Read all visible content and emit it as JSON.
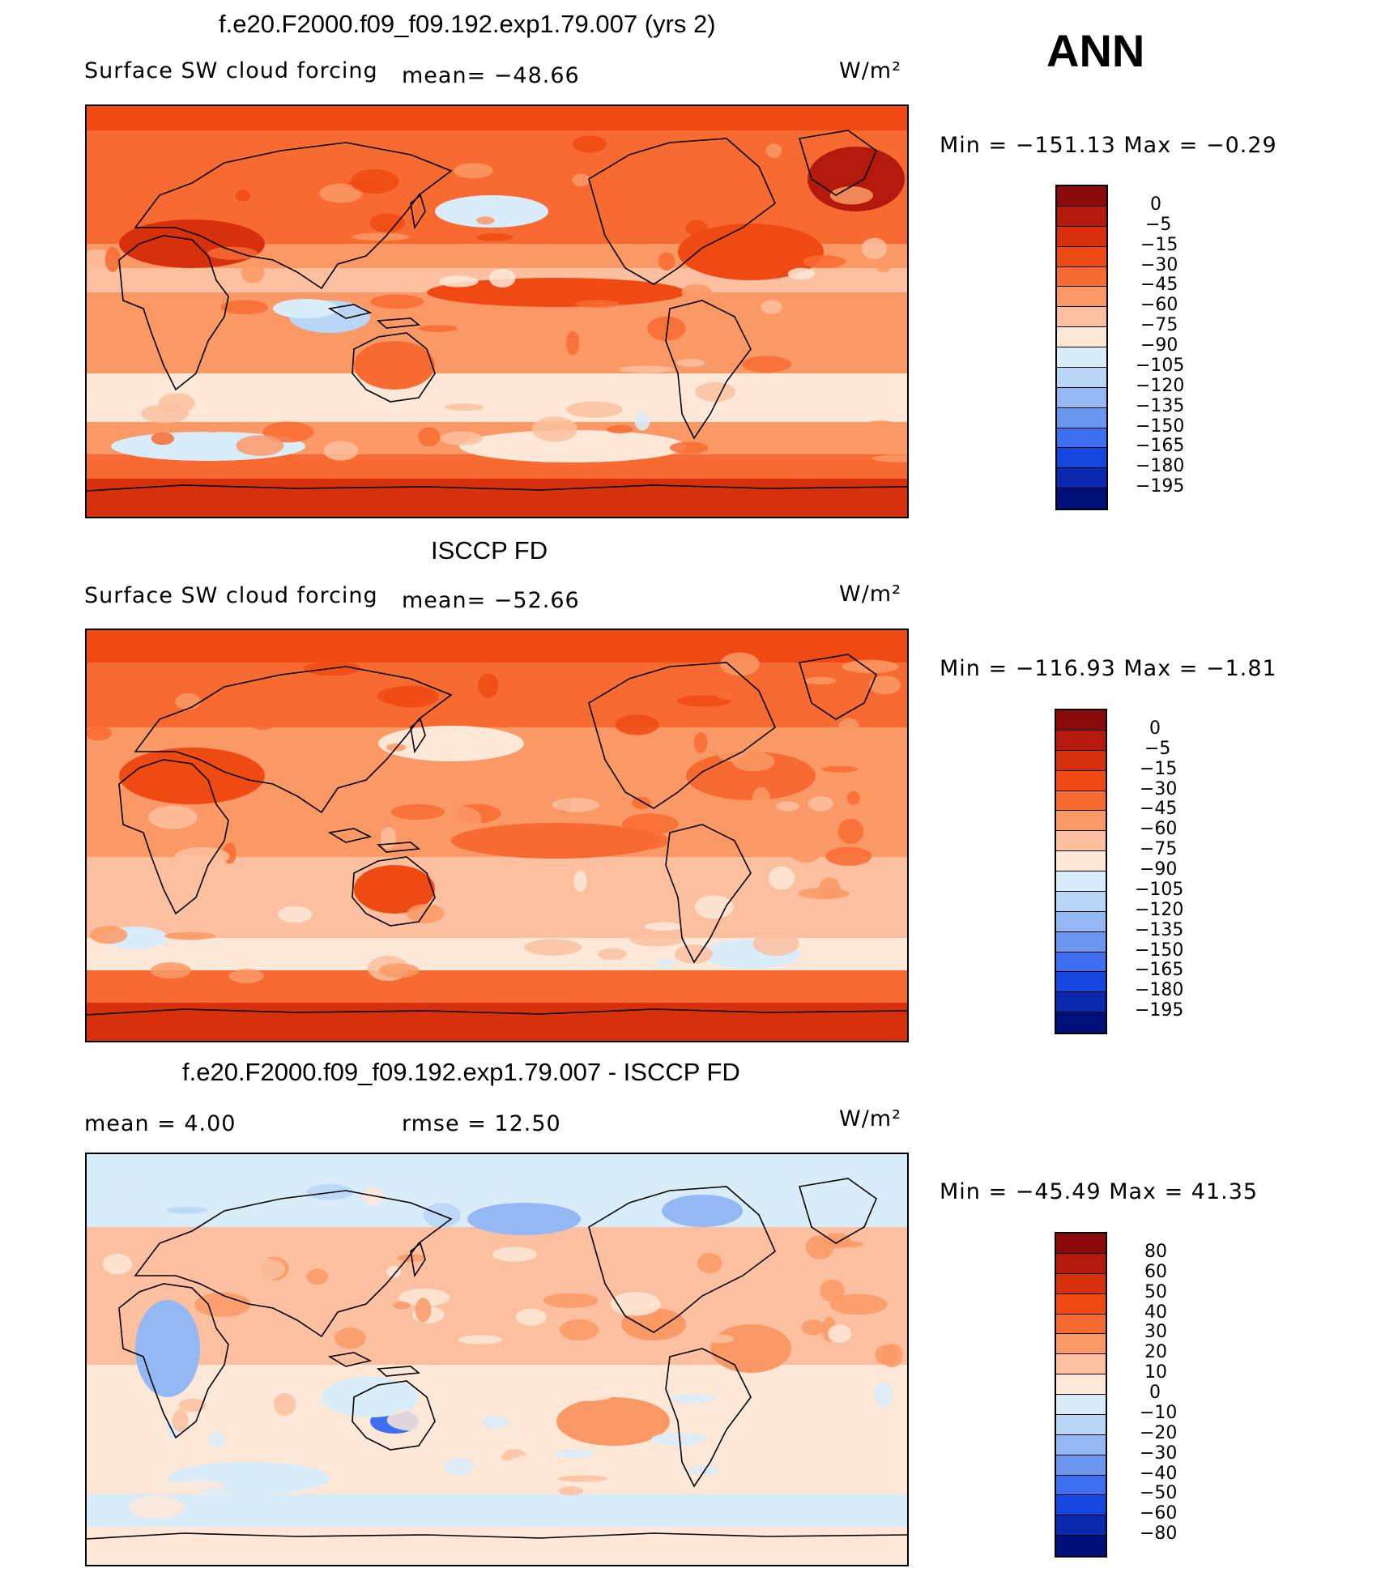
{
  "season": "ANN",
  "chart_data": [
    {
      "type": "heatmap",
      "title": "f.e20.F2000.f09_f09.192.exp1.79.007 (yrs 2)",
      "variable": "Surface SW cloud forcing",
      "mean_text": "mean=  −48.66",
      "units": "W/m²",
      "min_max_text": "Min  =  −151.13  Max  =    −0.29",
      "min": -151.13,
      "max": -0.29,
      "mean": -48.66,
      "colorbar": {
        "labels": [
          "0",
          "−5",
          "−15",
          "−30",
          "−45",
          "−60",
          "−75",
          "−90",
          "−105",
          "−120",
          "−135",
          "−150",
          "−165",
          "−180",
          "−195"
        ],
        "colors": [
          "#8b0a0a",
          "#b31a0c",
          "#d7300c",
          "#f04a14",
          "#f76b33",
          "#fa9966",
          "#fcc0a0",
          "#fde8d8",
          "#d9ecfa",
          "#b9d6f7",
          "#94b8f4",
          "#6a96f0",
          "#3d6ff0",
          "#1646e0",
          "#0a28b0",
          "#00107a"
        ]
      }
    },
    {
      "type": "heatmap",
      "title": "ISCCP FD",
      "variable": "Surface SW cloud forcing",
      "mean_text": "mean=  −52.66",
      "units": "W/m²",
      "min_max_text": "Min  =  −116.93  Max  =    −1.81",
      "min": -116.93,
      "max": -1.81,
      "mean": -52.66,
      "colorbar": {
        "labels": [
          "0",
          "−5",
          "−15",
          "−30",
          "−45",
          "−60",
          "−75",
          "−90",
          "−105",
          "−120",
          "−135",
          "−150",
          "−165",
          "−180",
          "−195"
        ],
        "colors": [
          "#8b0a0a",
          "#b31a0c",
          "#d7300c",
          "#f04a14",
          "#f76b33",
          "#fa9966",
          "#fcc0a0",
          "#fde8d8",
          "#d9ecfa",
          "#b9d6f7",
          "#94b8f4",
          "#6a96f0",
          "#3d6ff0",
          "#1646e0",
          "#0a28b0",
          "#00107a"
        ]
      }
    },
    {
      "type": "heatmap",
      "title": "f.e20.F2000.f09_f09.192.exp1.79.007 - ISCCP FD",
      "mean_text": "mean  =      4.00",
      "rmse_text": "rmse  =     12.50",
      "units": "W/m²",
      "min_max_text": "Min  =  −45.49  Max  =    41.35",
      "min": -45.49,
      "max": 41.35,
      "mean": 4.0,
      "rmse": 12.5,
      "colorbar": {
        "labels": [
          "80",
          "60",
          "50",
          "40",
          "30",
          "20",
          "10",
          "0",
          "−10",
          "−20",
          "−30",
          "−40",
          "−50",
          "−60",
          "−80"
        ],
        "colors": [
          "#8b0a0a",
          "#b31a0c",
          "#d7300c",
          "#f04a14",
          "#f76b33",
          "#fa9966",
          "#fcc0a0",
          "#fde8d8",
          "#d9ecfa",
          "#b9d6f7",
          "#94b8f4",
          "#6a96f0",
          "#3d6ff0",
          "#1646e0",
          "#0a28b0",
          "#00107a"
        ]
      }
    }
  ]
}
